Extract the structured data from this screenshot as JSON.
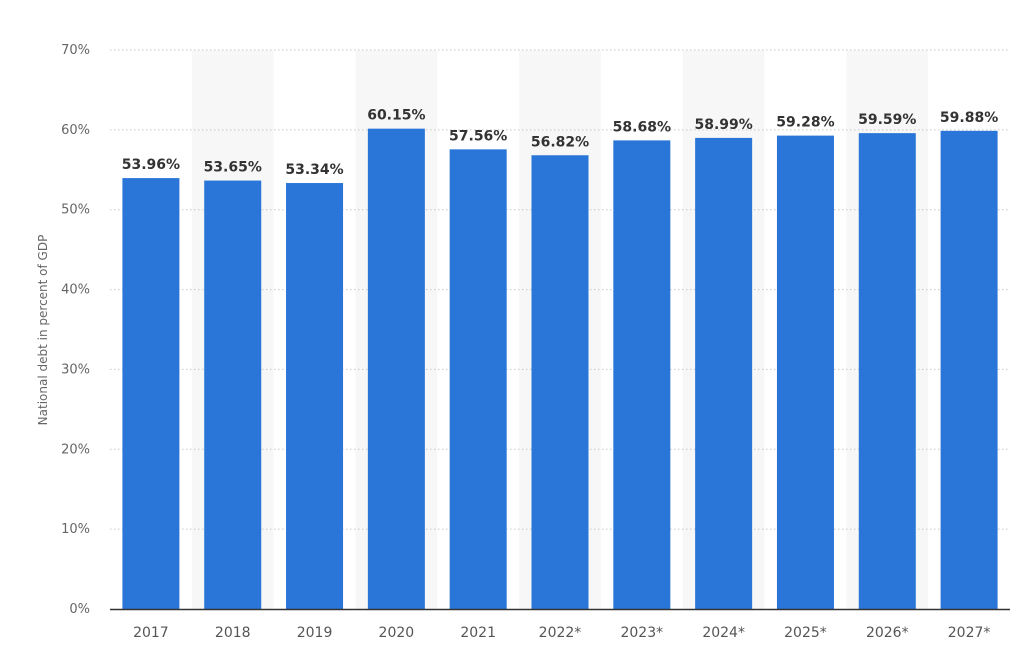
{
  "chart_data": {
    "type": "bar",
    "categories": [
      "2017",
      "2018",
      "2019",
      "2020",
      "2021",
      "2022*",
      "2023*",
      "2024*",
      "2025*",
      "2026*",
      "2027*"
    ],
    "values": [
      53.96,
      53.65,
      53.34,
      60.15,
      57.56,
      56.82,
      58.68,
      58.99,
      59.28,
      59.59,
      59.88
    ],
    "value_labels": [
      "53.96%",
      "53.65%",
      "53.34%",
      "60.15%",
      "57.56%",
      "56.82%",
      "58.68%",
      "58.99%",
      "59.28%",
      "59.59%",
      "59.88%"
    ],
    "title": "",
    "xlabel": "",
    "ylabel": "National debt in percent of GDP",
    "ylim": [
      0,
      70
    ],
    "y_ticks": [
      0,
      10,
      20,
      30,
      40,
      50,
      60,
      70
    ],
    "y_tick_labels": [
      "0%",
      "10%",
      "20%",
      "30%",
      "40%",
      "50%",
      "60%",
      "70%"
    ],
    "grid": true,
    "bar_color": "#2a75d8",
    "stripe_color": "#f7f7f7"
  }
}
